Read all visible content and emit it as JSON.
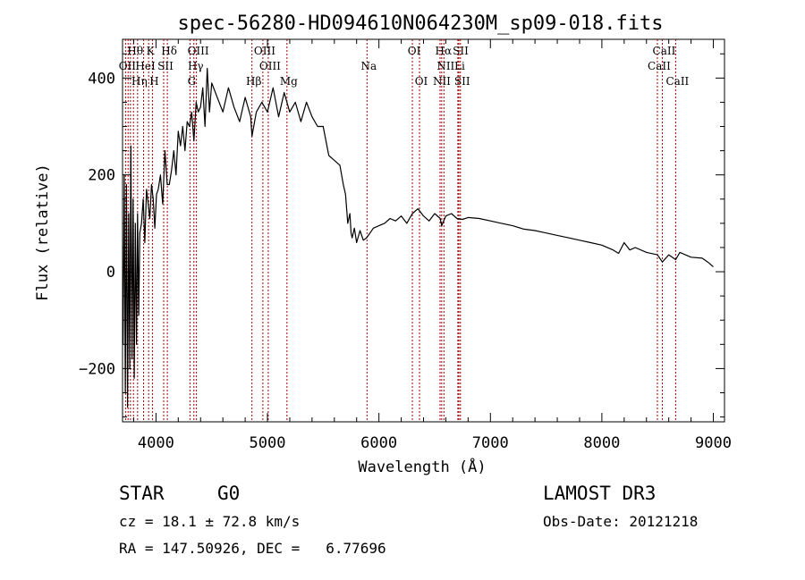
{
  "chart_data": {
    "type": "line",
    "title": "spec-56280-HD094610N064230M_sp09-018.fits",
    "xlabel": "Wavelength (Å)",
    "ylabel": "Flux (relative)",
    "xlim": [
      3700,
      9100
    ],
    "ylim": [
      -310,
      480
    ],
    "xticks": [
      4000,
      5000,
      6000,
      7000,
      8000,
      9000
    ],
    "yticks": [
      -200,
      0,
      200,
      400
    ],
    "xtick_labels": [
      "4000",
      "5000",
      "6000",
      "7000",
      "8000",
      "9000"
    ],
    "ytick_labels": [
      "−200",
      "0",
      "200",
      "400"
    ],
    "series": [
      {
        "name": "spectrum",
        "x": [
          3705,
          3715,
          3725,
          3735,
          3745,
          3755,
          3765,
          3775,
          3785,
          3795,
          3805,
          3815,
          3825,
          3835,
          3845,
          3855,
          3870,
          3885,
          3900,
          3915,
          3930,
          3945,
          3960,
          3975,
          3990,
          4005,
          4020,
          4040,
          4060,
          4080,
          4100,
          4120,
          4140,
          4160,
          4180,
          4200,
          4220,
          4240,
          4260,
          4280,
          4300,
          4320,
          4340,
          4360,
          4380,
          4400,
          4420,
          4440,
          4460,
          4480,
          4500,
          4550,
          4600,
          4650,
          4700,
          4750,
          4800,
          4850,
          4861,
          4900,
          4950,
          5000,
          5050,
          5100,
          5150,
          5200,
          5250,
          5300,
          5350,
          5400,
          5450,
          5500,
          5550,
          5600,
          5650,
          5680,
          5700,
          5720,
          5740,
          5750,
          5760,
          5780,
          5800,
          5830,
          5860,
          5890,
          5920,
          5950,
          6000,
          6050,
          6100,
          6150,
          6200,
          6250,
          6300,
          6350,
          6400,
          6450,
          6500,
          6550,
          6563,
          6600,
          6650,
          6700,
          6750,
          6800,
          6900,
          7000,
          7100,
          7200,
          7300,
          7400,
          7500,
          7600,
          7700,
          7800,
          7900,
          8000,
          8100,
          8150,
          8200,
          8250,
          8300,
          8400,
          8498,
          8542,
          8600,
          8662,
          8700,
          8800,
          8900,
          8950,
          9000
        ],
        "values": [
          -150,
          200,
          -250,
          180,
          -280,
          120,
          -200,
          260,
          -180,
          150,
          -220,
          100,
          -150,
          120,
          -90,
          80,
          100,
          150,
          60,
          170,
          140,
          110,
          180,
          150,
          90,
          160,
          170,
          200,
          140,
          250,
          180,
          180,
          210,
          250,
          200,
          290,
          260,
          300,
          250,
          310,
          300,
          330,
          270,
          350,
          330,
          340,
          380,
          300,
          420,
          330,
          390,
          360,
          330,
          380,
          340,
          310,
          360,
          320,
          280,
          330,
          350,
          330,
          380,
          320,
          370,
          330,
          350,
          310,
          350,
          320,
          300,
          300,
          240,
          230,
          220,
          180,
          160,
          100,
          120,
          80,
          70,
          90,
          60,
          85,
          65,
          70,
          80,
          90,
          95,
          100,
          110,
          105,
          115,
          100,
          120,
          130,
          115,
          105,
          120,
          110,
          95,
          115,
          120,
          110,
          108,
          112,
          110,
          105,
          100,
          95,
          88,
          85,
          80,
          75,
          70,
          65,
          60,
          55,
          45,
          38,
          60,
          45,
          50,
          40,
          35,
          20,
          35,
          25,
          40,
          30,
          28,
          20,
          10
        ]
      }
    ],
    "line_markers": [
      {
        "label": "Hθ",
        "x": 3798,
        "row": 1
      },
      {
        "label": "K",
        "x": 3934,
        "row": 1
      },
      {
        "label": "Hδ",
        "x": 4102,
        "row": 1
      },
      {
        "label": "OIII",
        "x": 4363,
        "row": 1
      },
      {
        "label": "OIII",
        "x": 4959,
        "row": 1
      },
      {
        "label": "OI",
        "x": 6300,
        "row": 1
      },
      {
        "label": "Hα",
        "x": 6563,
        "row": 1
      },
      {
        "label": "SII",
        "x": 6717,
        "row": 1
      },
      {
        "label": "CaII",
        "x": 8542,
        "row": 1
      },
      {
        "label": "OII",
        "x": 3727,
        "row": 2
      },
      {
        "label": "HeI",
        "x": 3889,
        "row": 2
      },
      {
        "label": "SII",
        "x": 4069,
        "row": 2
      },
      {
        "label": "Hγ",
        "x": 4340,
        "row": 2
      },
      {
        "label": "OIII",
        "x": 5007,
        "row": 2
      },
      {
        "label": "Na",
        "x": 5893,
        "row": 2
      },
      {
        "label": "NII",
        "x": 6583,
        "row": 2
      },
      {
        "label": "Li",
        "x": 6708,
        "row": 2
      },
      {
        "label": "CaII",
        "x": 8498,
        "row": 2
      },
      {
        "label": "Hη",
        "x": 3835,
        "row": 3
      },
      {
        "label": "H",
        "x": 3968,
        "row": 3
      },
      {
        "label": "G",
        "x": 4305,
        "row": 3
      },
      {
        "label": "Hβ",
        "x": 4861,
        "row": 3
      },
      {
        "label": "Mg",
        "x": 5175,
        "row": 3
      },
      {
        "label": "OI",
        "x": 6364,
        "row": 3
      },
      {
        "label": "NII",
        "x": 6548,
        "row": 3
      },
      {
        "label": "SII",
        "x": 6731,
        "row": 3
      },
      {
        "label": "CaII",
        "x": 8662,
        "row": 3
      }
    ],
    "line_marker_x": [
      3727,
      3750,
      3771,
      3798,
      3835,
      3889,
      3934,
      3968,
      4069,
      4102,
      4305,
      4340,
      4363,
      4861,
      4959,
      5007,
      5175,
      5893,
      6300,
      6364,
      6548,
      6563,
      6583,
      6708,
      6717,
      6731,
      8498,
      8542,
      8662
    ]
  },
  "info": {
    "object_class": "STAR",
    "subclass": "G0",
    "survey": "LAMOST DR3",
    "redshift": "cz = 18.1 ± 72.8 km/s",
    "obs_date": "Obs-Date: 20121218",
    "coords": "RA = 147.50926, DEC =   6.77696"
  },
  "colors": {
    "line": "#000000",
    "markers": "#a00000",
    "axes": "#000000",
    "background": "#ffffff"
  }
}
